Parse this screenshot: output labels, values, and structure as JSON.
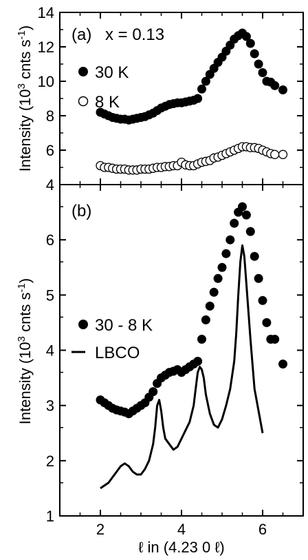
{
  "chart_data": [
    {
      "panel_label": "(a)",
      "annotation": "x = 0.13",
      "type": "scatter",
      "ylabel": "Intensity (10³ cnts s⁻¹)",
      "xlim": [
        1,
        7
      ],
      "ylim": [
        4,
        14
      ],
      "yticks": [
        "4",
        "6",
        "8",
        "10",
        "12",
        "14"
      ],
      "legend_position": "top-left",
      "series": [
        {
          "name": "30 K",
          "marker": "filled-circle",
          "x": [
            2.0,
            2.1,
            2.2,
            2.3,
            2.4,
            2.5,
            2.6,
            2.7,
            2.8,
            2.9,
            3.0,
            3.1,
            3.2,
            3.3,
            3.4,
            3.5,
            3.6,
            3.7,
            3.8,
            3.9,
            4.0,
            4.1,
            4.2,
            4.3,
            4.4,
            4.5,
            4.6,
            4.7,
            4.8,
            4.9,
            5.0,
            5.1,
            5.2,
            5.3,
            5.4,
            5.5,
            5.6,
            5.7,
            5.8,
            5.9,
            6.0,
            6.1,
            6.2,
            6.3,
            6.5
          ],
          "y": [
            8.2,
            8.1,
            8.0,
            7.9,
            7.85,
            7.8,
            7.8,
            7.75,
            7.8,
            7.85,
            7.9,
            7.95,
            8.05,
            8.15,
            8.3,
            8.45,
            8.55,
            8.65,
            8.7,
            8.75,
            8.75,
            8.8,
            8.85,
            8.9,
            9.0,
            9.55,
            10.0,
            10.4,
            10.75,
            11.1,
            11.4,
            11.75,
            12.1,
            12.45,
            12.65,
            12.8,
            12.6,
            12.2,
            11.6,
            11.0,
            10.5,
            10.0,
            9.95,
            9.75,
            9.5
          ]
        },
        {
          "name": "8 K",
          "marker": "open-circle",
          "x": [
            2.0,
            2.1,
            2.2,
            2.3,
            2.4,
            2.5,
            2.6,
            2.7,
            2.8,
            2.9,
            3.0,
            3.1,
            3.2,
            3.3,
            3.4,
            3.5,
            3.6,
            3.7,
            3.8,
            3.9,
            4.0,
            4.1,
            4.2,
            4.3,
            4.4,
            4.5,
            4.6,
            4.7,
            4.8,
            4.9,
            5.0,
            5.1,
            5.2,
            5.3,
            5.4,
            5.5,
            5.6,
            5.7,
            5.8,
            5.9,
            6.0,
            6.1,
            6.2,
            6.3,
            6.5
          ],
          "y": [
            5.1,
            5.0,
            5.0,
            4.95,
            4.9,
            4.9,
            4.9,
            4.85,
            4.85,
            4.85,
            4.9,
            4.9,
            4.9,
            4.95,
            5.0,
            5.0,
            5.05,
            5.05,
            5.1,
            5.1,
            5.3,
            5.15,
            5.1,
            5.1,
            5.2,
            5.3,
            5.35,
            5.4,
            5.55,
            5.6,
            5.7,
            5.8,
            5.9,
            6.0,
            6.1,
            6.2,
            6.2,
            6.15,
            6.15,
            6.1,
            6.0,
            5.9,
            5.8,
            5.75,
            5.75
          ]
        }
      ]
    },
    {
      "panel_label": "(b)",
      "type": "scatter",
      "ylabel": "Intensity (10³ cnts s⁻¹)",
      "xlabel": "ℓ in (4.23 0 ℓ)",
      "xlim": [
        1,
        7
      ],
      "ylim": [
        1,
        7
      ],
      "xticks": [
        "2",
        "4",
        "6"
      ],
      "yticks": [
        "1",
        "2",
        "3",
        "4",
        "5",
        "6"
      ],
      "legend_position": "top-left",
      "series": [
        {
          "name": "30 - 8 K",
          "marker": "filled-circle",
          "x": [
            2.0,
            2.1,
            2.2,
            2.3,
            2.4,
            2.5,
            2.6,
            2.7,
            2.8,
            2.9,
            3.0,
            3.1,
            3.2,
            3.3,
            3.4,
            3.5,
            3.6,
            3.7,
            3.8,
            3.9,
            4.0,
            4.1,
            4.2,
            4.3,
            4.4,
            4.5,
            4.6,
            4.7,
            4.8,
            4.9,
            5.0,
            5.1,
            5.2,
            5.3,
            5.4,
            5.5,
            5.6,
            5.7,
            5.8,
            5.9,
            6.0,
            6.1,
            6.2,
            6.3,
            6.5
          ],
          "y": [
            3.1,
            3.05,
            3.0,
            2.95,
            2.92,
            2.9,
            2.88,
            2.85,
            2.9,
            2.95,
            3.0,
            3.05,
            3.15,
            3.25,
            3.4,
            3.5,
            3.55,
            3.6,
            3.62,
            3.65,
            3.6,
            3.65,
            3.7,
            3.75,
            3.8,
            4.2,
            4.55,
            4.8,
            5.05,
            5.3,
            5.5,
            5.75,
            6.0,
            6.3,
            6.5,
            6.6,
            6.45,
            6.15,
            5.7,
            5.3,
            4.9,
            4.5,
            4.2,
            4.2,
            3.75
          ]
        },
        {
          "name": "LBCO",
          "marker": "line",
          "x": [
            2.0,
            2.1,
            2.2,
            2.3,
            2.4,
            2.5,
            2.6,
            2.7,
            2.8,
            2.9,
            3.0,
            3.1,
            3.2,
            3.3,
            3.35,
            3.4,
            3.45,
            3.5,
            3.55,
            3.6,
            3.7,
            3.8,
            3.9,
            4.0,
            4.1,
            4.2,
            4.3,
            4.35,
            4.4,
            4.45,
            4.5,
            4.55,
            4.6,
            4.7,
            4.8,
            4.9,
            5.0,
            5.1,
            5.2,
            5.3,
            5.35,
            5.4,
            5.45,
            5.5,
            5.55,
            5.6,
            5.7,
            5.8,
            5.9,
            6.0
          ],
          "y": [
            1.5,
            1.55,
            1.6,
            1.7,
            1.8,
            1.9,
            1.95,
            1.9,
            1.8,
            1.75,
            1.75,
            1.85,
            2.0,
            2.3,
            2.6,
            3.0,
            3.1,
            2.9,
            2.6,
            2.4,
            2.3,
            2.2,
            2.25,
            2.4,
            2.55,
            2.7,
            3.0,
            3.3,
            3.6,
            3.7,
            3.65,
            3.5,
            3.2,
            2.85,
            2.65,
            2.6,
            2.75,
            3.0,
            3.3,
            3.8,
            4.3,
            5.0,
            5.6,
            5.9,
            5.7,
            5.2,
            4.2,
            3.3,
            2.9,
            2.5
          ]
        }
      ]
    }
  ]
}
